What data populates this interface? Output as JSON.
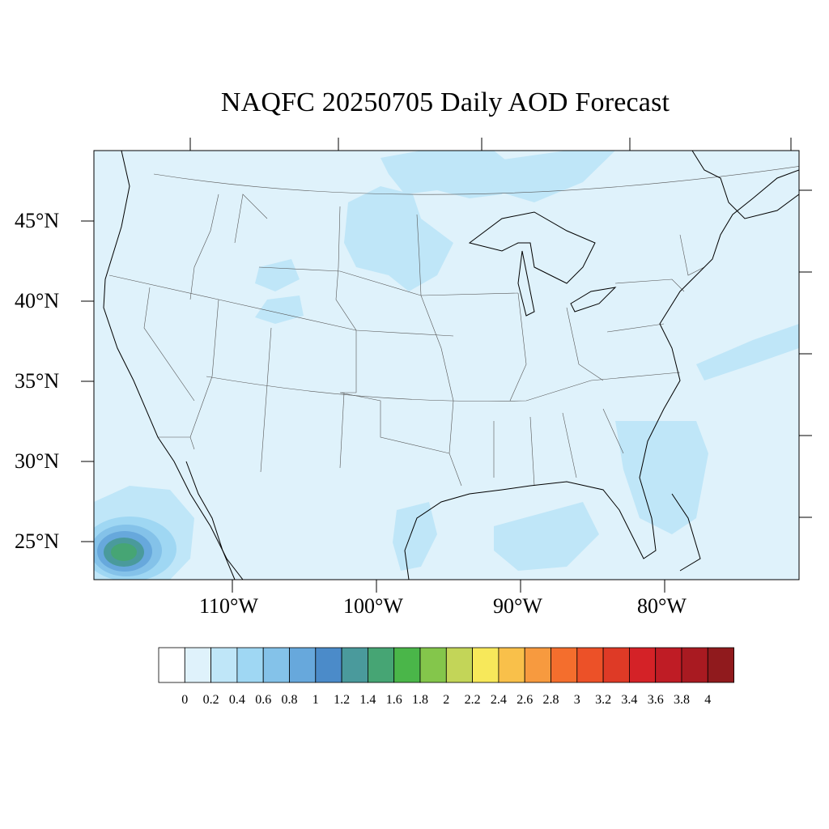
{
  "title": "NAQFC 20250705 Daily AOD Forecast",
  "lat_labels": [
    "45°N",
    "40°N",
    "35°N",
    "30°N",
    "25°N"
  ],
  "lon_labels": [
    "110°W",
    "100°W",
    "90°W",
    "80°W"
  ],
  "colorbar": {
    "labels": [
      "0",
      "0.2",
      "0.4",
      "0.6",
      "0.8",
      "1",
      "1.2",
      "1.4",
      "1.6",
      "1.8",
      "2",
      "2.2",
      "2.4",
      "2.6",
      "2.8",
      "3",
      "3.2",
      "3.4",
      "3.6",
      "3.8",
      "4"
    ],
    "colors": [
      "#ffffff",
      "#dff2fb",
      "#bfe6f8",
      "#9fd7f3",
      "#84c2e9",
      "#67a8dc",
      "#4b8bc9",
      "#4a9a9c",
      "#46a574",
      "#4ab649",
      "#84c64b",
      "#c3d558",
      "#f7e85a",
      "#f9c04a",
      "#f79a3f",
      "#f46e2d",
      "#ec5128",
      "#de3a26",
      "#d42227",
      "#bf1c25",
      "#a91a21",
      "#901a1d"
    ]
  },
  "map": {
    "background_color": "#dff2fb",
    "plume_colors": [
      "#bfe6f8",
      "#9fd7f3",
      "#67a8dc",
      "#4a9a9c",
      "#46a574"
    ]
  }
}
